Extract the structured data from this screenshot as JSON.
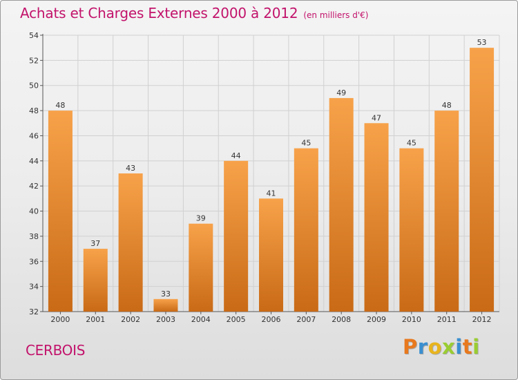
{
  "header": {
    "title": "Achats et Charges Externes 2000 à 2012",
    "unit": "(en milliers d'€)"
  },
  "footer": {
    "city": "CERBOIS",
    "logo_text": "Proxiti",
    "logo_colors": [
      "#e8791e",
      "#3a8fd0",
      "#e8b41e",
      "#9acd32",
      "#3a8fd0",
      "#e8791e",
      "#9acd32"
    ]
  },
  "colors": {
    "bar_light": "#f7a24a",
    "bar_dark": "#c96a16",
    "title": "#c2136b"
  },
  "chart_data": {
    "type": "bar",
    "title": "Achats et Charges Externes 2000 à 2012",
    "subtitle": "(en milliers d'€)",
    "xlabel": "",
    "ylabel": "",
    "categories": [
      "2000",
      "2001",
      "2002",
      "2003",
      "2004",
      "2005",
      "2006",
      "2007",
      "2008",
      "2009",
      "2010",
      "2011",
      "2012"
    ],
    "values": [
      48,
      37,
      43,
      33,
      39,
      44,
      41,
      45,
      49,
      47,
      45,
      48,
      53
    ],
    "ylim": [
      32,
      54
    ],
    "yticks": [
      32,
      34,
      36,
      38,
      40,
      42,
      44,
      46,
      48,
      50,
      52,
      54
    ],
    "grid": true,
    "data_labels": true
  }
}
